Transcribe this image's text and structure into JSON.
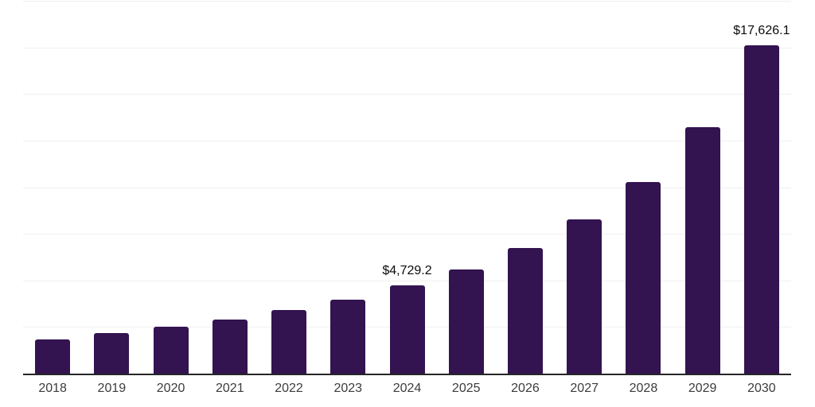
{
  "chart_data": {
    "type": "bar",
    "title": "",
    "xlabel": "",
    "ylabel": "",
    "categories": [
      "2018",
      "2019",
      "2020",
      "2021",
      "2022",
      "2023",
      "2024",
      "2025",
      "2026",
      "2027",
      "2028",
      "2029",
      "2030"
    ],
    "values": [
      1830,
      2175,
      2515,
      2900,
      3410,
      3965,
      4729.2,
      5585,
      6735,
      8270,
      10270,
      13210,
      17626.1
    ],
    "value_labels": {
      "2024": "$4,729.2",
      "2030": "$17,626.1"
    },
    "ylim": [
      0,
      20000
    ],
    "gridline_step": 2500,
    "grid": true,
    "legend_position": "none",
    "y_axis_tick_labels_visible": false,
    "colors": {
      "bar": "#331350",
      "gridline": "#f0f0f0",
      "axis_line": "#262626",
      "x_tick_label": "#3c3c3c",
      "value_label": "#0a0a0a",
      "background": "#ffffff"
    }
  }
}
